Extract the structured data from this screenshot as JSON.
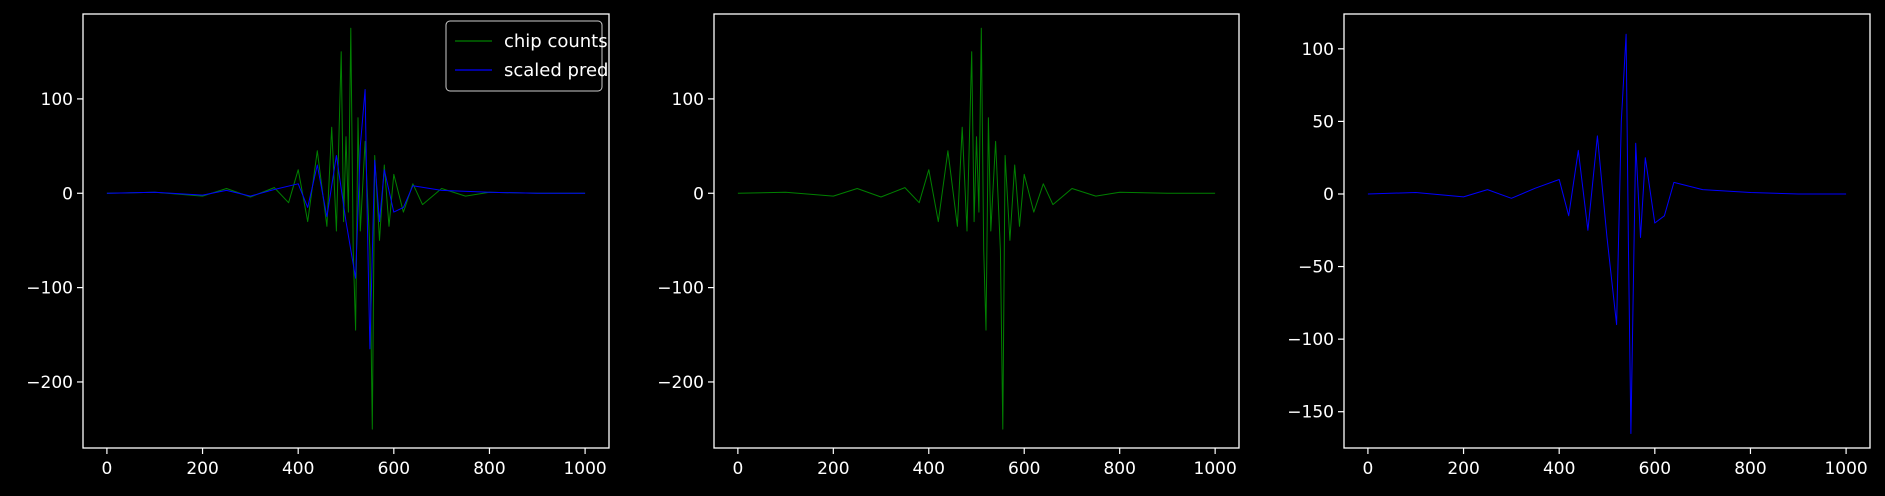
{
  "colors": {
    "background": "#000000",
    "axes": "#ffffff",
    "chip": "#008000",
    "pred": "#0000ff"
  },
  "chart_data": [
    {
      "type": "line",
      "xlim": [
        -50,
        1050
      ],
      "ylim": [
        -270,
        190
      ],
      "xticks": [
        0,
        200,
        400,
        600,
        800,
        1000
      ],
      "xtick_labels": [
        "0",
        "200",
        "400",
        "600",
        "800",
        "1000"
      ],
      "yticks": [
        -200,
        -100,
        0,
        100
      ],
      "ytick_labels": [
        "−200",
        "−100",
        "0",
        "100"
      ],
      "legend": {
        "placement": "top-right"
      },
      "series": [
        {
          "name": "chip counts",
          "color": "#008000",
          "points": [
            [
              0,
              0
            ],
            [
              100,
              1
            ],
            [
              200,
              -3
            ],
            [
              250,
              5
            ],
            [
              300,
              -4
            ],
            [
              350,
              6
            ],
            [
              380,
              -10
            ],
            [
              400,
              25
            ],
            [
              420,
              -30
            ],
            [
              440,
              45
            ],
            [
              460,
              -35
            ],
            [
              470,
              70
            ],
            [
              480,
              -40
            ],
            [
              490,
              150
            ],
            [
              495,
              -30
            ],
            [
              500,
              60
            ],
            [
              505,
              -20
            ],
            [
              510,
              175
            ],
            [
              515,
              -60
            ],
            [
              520,
              -145
            ],
            [
              525,
              80
            ],
            [
              530,
              -40
            ],
            [
              540,
              55
            ],
            [
              550,
              -60
            ],
            [
              555,
              -250
            ],
            [
              560,
              40
            ],
            [
              570,
              -50
            ],
            [
              580,
              30
            ],
            [
              590,
              -35
            ],
            [
              600,
              20
            ],
            [
              620,
              -20
            ],
            [
              640,
              10
            ],
            [
              660,
              -12
            ],
            [
              700,
              5
            ],
            [
              750,
              -3
            ],
            [
              800,
              1
            ],
            [
              900,
              0
            ],
            [
              1000,
              0
            ]
          ]
        },
        {
          "name": "scaled pred",
          "color": "#0000ff",
          "points": [
            [
              0,
              0
            ],
            [
              100,
              1
            ],
            [
              200,
              -2
            ],
            [
              250,
              3
            ],
            [
              300,
              -3
            ],
            [
              350,
              4
            ],
            [
              400,
              10
            ],
            [
              420,
              -15
            ],
            [
              440,
              30
            ],
            [
              460,
              -25
            ],
            [
              480,
              40
            ],
            [
              500,
              -30
            ],
            [
              520,
              -90
            ],
            [
              530,
              50
            ],
            [
              540,
              110
            ],
            [
              545,
              -40
            ],
            [
              550,
              -165
            ],
            [
              560,
              35
            ],
            [
              570,
              -30
            ],
            [
              580,
              25
            ],
            [
              600,
              -20
            ],
            [
              620,
              -15
            ],
            [
              640,
              8
            ],
            [
              700,
              3
            ],
            [
              800,
              1
            ],
            [
              900,
              0
            ],
            [
              1000,
              0
            ]
          ]
        }
      ]
    },
    {
      "type": "line",
      "xlim": [
        -50,
        1050
      ],
      "ylim": [
        -270,
        190
      ],
      "xticks": [
        0,
        200,
        400,
        600,
        800,
        1000
      ],
      "xtick_labels": [
        "0",
        "200",
        "400",
        "600",
        "800",
        "1000"
      ],
      "yticks": [
        -200,
        -100,
        0,
        100
      ],
      "ytick_labels": [
        "−200",
        "−100",
        "0",
        "100"
      ],
      "series": [
        {
          "color": "#008000",
          "points": [
            [
              0,
              0
            ],
            [
              100,
              1
            ],
            [
              200,
              -3
            ],
            [
              250,
              5
            ],
            [
              300,
              -4
            ],
            [
              350,
              6
            ],
            [
              380,
              -10
            ],
            [
              400,
              25
            ],
            [
              420,
              -30
            ],
            [
              440,
              45
            ],
            [
              460,
              -35
            ],
            [
              470,
              70
            ],
            [
              480,
              -40
            ],
            [
              490,
              150
            ],
            [
              495,
              -30
            ],
            [
              500,
              60
            ],
            [
              505,
              -20
            ],
            [
              510,
              175
            ],
            [
              515,
              -60
            ],
            [
              520,
              -145
            ],
            [
              525,
              80
            ],
            [
              530,
              -40
            ],
            [
              540,
              55
            ],
            [
              550,
              -60
            ],
            [
              555,
              -250
            ],
            [
              560,
              40
            ],
            [
              570,
              -50
            ],
            [
              580,
              30
            ],
            [
              590,
              -35
            ],
            [
              600,
              20
            ],
            [
              620,
              -20
            ],
            [
              640,
              10
            ],
            [
              660,
              -12
            ],
            [
              700,
              5
            ],
            [
              750,
              -3
            ],
            [
              800,
              1
            ],
            [
              900,
              0
            ],
            [
              1000,
              0
            ]
          ]
        }
      ]
    },
    {
      "type": "line",
      "xlim": [
        -50,
        1050
      ],
      "ylim": [
        -175,
        124
      ],
      "xticks": [
        0,
        200,
        400,
        600,
        800,
        1000
      ],
      "xtick_labels": [
        "0",
        "200",
        "400",
        "600",
        "800",
        "1000"
      ],
      "yticks": [
        -150,
        -100,
        -50,
        0,
        50,
        100
      ],
      "ytick_labels": [
        "−150",
        "−100",
        "−50",
        "0",
        "50",
        "100"
      ],
      "series": [
        {
          "color": "#0000ff",
          "points": [
            [
              0,
              0
            ],
            [
              100,
              1
            ],
            [
              200,
              -2
            ],
            [
              250,
              3
            ],
            [
              300,
              -3
            ],
            [
              350,
              4
            ],
            [
              400,
              10
            ],
            [
              420,
              -15
            ],
            [
              440,
              30
            ],
            [
              460,
              -25
            ],
            [
              480,
              40
            ],
            [
              500,
              -30
            ],
            [
              520,
              -90
            ],
            [
              530,
              50
            ],
            [
              540,
              110
            ],
            [
              545,
              -40
            ],
            [
              550,
              -165
            ],
            [
              560,
              35
            ],
            [
              570,
              -30
            ],
            [
              580,
              25
            ],
            [
              600,
              -20
            ],
            [
              620,
              -15
            ],
            [
              640,
              8
            ],
            [
              700,
              3
            ],
            [
              800,
              1
            ],
            [
              900,
              0
            ],
            [
              1000,
              0
            ]
          ]
        }
      ]
    }
  ]
}
